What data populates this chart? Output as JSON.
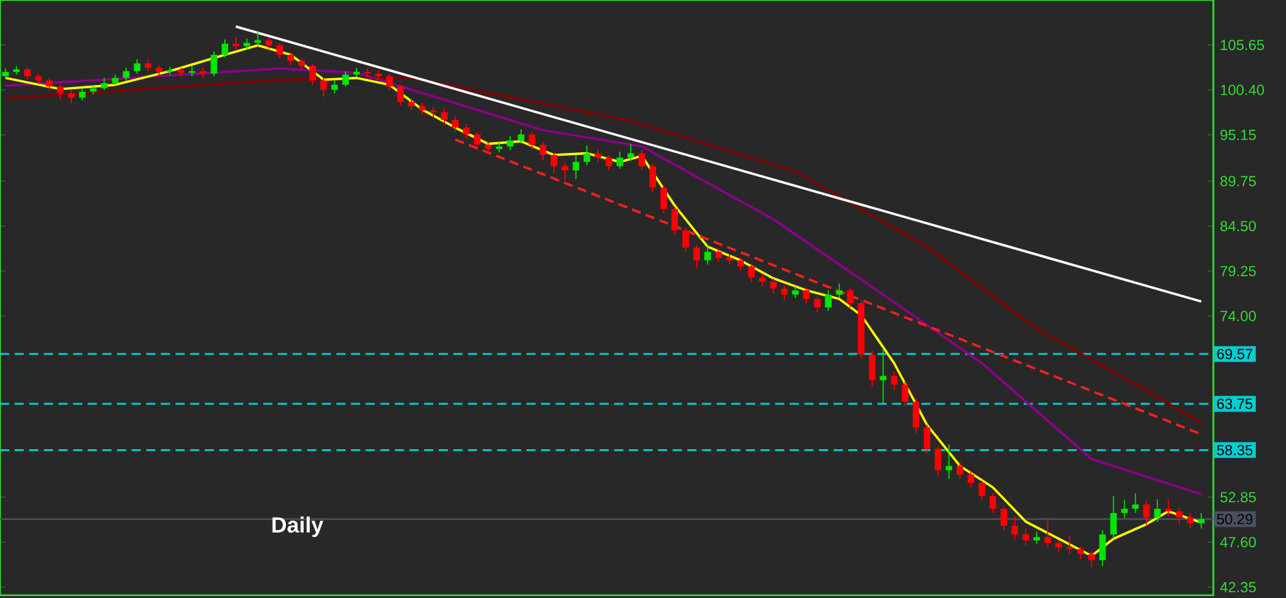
{
  "chart_data": {
    "type": "candlestick",
    "categories": [
      null,
      null,
      null,
      null,
      null,
      null,
      null,
      null,
      null,
      null,
      null,
      null,
      null,
      null,
      null,
      null,
      null,
      null,
      null,
      null,
      null,
      null,
      null,
      null,
      null,
      null,
      null,
      null,
      null,
      null,
      null,
      null,
      null,
      null,
      null,
      null,
      null,
      null,
      null,
      null,
      null,
      null,
      null,
      null,
      null,
      null,
      null,
      null,
      null,
      null,
      null,
      null,
      null,
      null,
      null,
      null,
      null,
      null,
      null,
      null,
      null,
      null,
      null,
      null,
      null,
      null,
      null,
      null,
      null,
      null,
      null,
      null,
      null,
      null,
      null,
      null,
      null,
      null,
      null,
      null,
      null,
      null,
      null,
      null,
      null,
      null,
      null,
      null,
      null,
      null,
      null,
      null,
      null,
      null,
      null,
      null,
      null,
      null,
      null,
      null,
      null,
      null,
      null,
      null,
      null,
      null,
      null,
      null,
      null,
      null
    ],
    "ohlc": [
      [
        102.0,
        102.9,
        101.7,
        102.5
      ],
      [
        102.5,
        103.2,
        102.2,
        102.8
      ],
      [
        102.8,
        103.0,
        101.6,
        102.0
      ],
      [
        102.0,
        102.3,
        101.1,
        101.5
      ],
      [
        101.5,
        101.8,
        100.3,
        100.8
      ],
      [
        100.8,
        101.0,
        99.3,
        100.0
      ],
      [
        100.0,
        100.4,
        98.8,
        99.5
      ],
      [
        99.5,
        100.6,
        99.2,
        100.2
      ],
      [
        100.2,
        101.0,
        99.9,
        100.6
      ],
      [
        100.6,
        101.8,
        100.4,
        101.2
      ],
      [
        101.2,
        102.2,
        101.0,
        101.8
      ],
      [
        101.8,
        103.0,
        101.5,
        102.6
      ],
      [
        102.6,
        104.0,
        102.3,
        103.5
      ],
      [
        103.5,
        103.9,
        102.6,
        103.0
      ],
      [
        103.0,
        103.3,
        102.0,
        102.5
      ],
      [
        102.5,
        103.1,
        102.1,
        102.7
      ],
      [
        102.7,
        103.0,
        101.9,
        102.4
      ],
      [
        102.4,
        103.2,
        102.0,
        102.6
      ],
      [
        102.6,
        103.0,
        101.8,
        102.3
      ],
      [
        102.3,
        104.9,
        102.0,
        104.5
      ],
      [
        104.5,
        106.3,
        104.2,
        105.8
      ],
      [
        105.8,
        106.6,
        105.0,
        105.5
      ],
      [
        105.5,
        106.4,
        105.1,
        105.9
      ],
      [
        105.9,
        107.3,
        105.6,
        106.2
      ],
      [
        106.2,
        106.5,
        105.2,
        105.6
      ],
      [
        105.6,
        105.9,
        104.1,
        104.5
      ],
      [
        104.5,
        104.8,
        103.3,
        103.8
      ],
      [
        103.8,
        104.1,
        102.8,
        103.2
      ],
      [
        103.2,
        103.4,
        101.0,
        101.5
      ],
      [
        101.5,
        101.8,
        99.6,
        100.4
      ],
      [
        100.4,
        101.5,
        100.0,
        101.0
      ],
      [
        101.0,
        102.6,
        100.8,
        102.2
      ],
      [
        102.2,
        103.0,
        101.9,
        102.5
      ],
      [
        102.5,
        102.9,
        101.9,
        102.3
      ],
      [
        102.3,
        102.7,
        101.6,
        102.0
      ],
      [
        102.0,
        102.3,
        100.4,
        100.8
      ],
      [
        100.8,
        101.0,
        98.6,
        99.0
      ],
      [
        99.0,
        99.4,
        98.0,
        98.5
      ],
      [
        98.5,
        98.9,
        97.5,
        98.0
      ],
      [
        98.0,
        98.4,
        97.2,
        97.8
      ],
      [
        97.8,
        98.2,
        96.4,
        96.9
      ],
      [
        96.9,
        97.3,
        95.5,
        96.0
      ],
      [
        96.0,
        96.4,
        94.7,
        95.2
      ],
      [
        95.2,
        95.5,
        93.4,
        94.0
      ],
      [
        94.0,
        94.3,
        92.9,
        93.5
      ],
      [
        93.5,
        94.4,
        93.1,
        93.8
      ],
      [
        93.8,
        95.0,
        93.4,
        94.5
      ],
      [
        94.5,
        95.8,
        94.2,
        95.2
      ],
      [
        95.2,
        95.5,
        93.5,
        94.0
      ],
      [
        94.0,
        94.3,
        92.2,
        92.8
      ],
      [
        92.8,
        93.1,
        90.6,
        91.5
      ],
      [
        91.5,
        91.9,
        89.8,
        91.0
      ],
      [
        91.0,
        92.8,
        90.0,
        92.0
      ],
      [
        92.0,
        93.9,
        91.6,
        93.0
      ],
      [
        93.0,
        93.4,
        92.0,
        92.5
      ],
      [
        92.5,
        92.8,
        91.0,
        91.5
      ],
      [
        91.5,
        93.2,
        91.2,
        92.5
      ],
      [
        92.5,
        94.1,
        92.1,
        93.0
      ],
      [
        93.0,
        93.4,
        91.0,
        91.5
      ],
      [
        91.5,
        91.8,
        88.5,
        89.0
      ],
      [
        89.0,
        89.3,
        86.0,
        86.5
      ],
      [
        86.5,
        86.8,
        83.5,
        84.0
      ],
      [
        84.0,
        84.3,
        81.5,
        82.0
      ],
      [
        82.0,
        82.3,
        79.6,
        80.5
      ],
      [
        80.5,
        82.2,
        80.0,
        81.5
      ],
      [
        81.5,
        81.9,
        80.3,
        80.8
      ],
      [
        80.8,
        81.2,
        80.0,
        80.5
      ],
      [
        80.5,
        80.9,
        79.3,
        79.8
      ],
      [
        79.8,
        80.1,
        78.0,
        78.5
      ],
      [
        78.5,
        78.9,
        77.5,
        78.0
      ],
      [
        78.0,
        78.4,
        76.6,
        77.2
      ],
      [
        77.2,
        77.6,
        75.9,
        76.5
      ],
      [
        76.5,
        77.5,
        76.1,
        77.0
      ],
      [
        77.0,
        77.3,
        75.5,
        76.0
      ],
      [
        76.0,
        76.3,
        74.4,
        75.0
      ],
      [
        75.0,
        77.0,
        74.6,
        76.5
      ],
      [
        76.5,
        77.8,
        76.1,
        77.0
      ],
      [
        77.0,
        77.3,
        75.0,
        75.5
      ],
      [
        75.5,
        75.8,
        69.0,
        69.5
      ],
      [
        69.5,
        70.0,
        65.8,
        66.5
      ],
      [
        66.5,
        70.3,
        63.8,
        67.0
      ],
      [
        67.0,
        67.5,
        65.4,
        66.0
      ],
      [
        66.0,
        66.3,
        63.5,
        64.0
      ],
      [
        64.0,
        64.4,
        60.3,
        61.0
      ],
      [
        61.0,
        61.3,
        57.9,
        58.5
      ],
      [
        58.5,
        58.8,
        55.3,
        56.0
      ],
      [
        56.0,
        59.0,
        55.0,
        56.5
      ],
      [
        56.5,
        57.0,
        55.0,
        55.5
      ],
      [
        55.5,
        55.8,
        54.0,
        54.5
      ],
      [
        54.5,
        54.8,
        52.4,
        53.0
      ],
      [
        53.0,
        53.3,
        51.0,
        51.5
      ],
      [
        51.5,
        51.8,
        48.9,
        49.5
      ],
      [
        49.5,
        50.6,
        47.9,
        48.5
      ],
      [
        48.5,
        49.2,
        47.2,
        47.8
      ],
      [
        47.8,
        48.8,
        47.4,
        48.2
      ],
      [
        48.2,
        50.5,
        47.0,
        47.5
      ],
      [
        47.5,
        47.8,
        46.4,
        47.0
      ],
      [
        47.0,
        48.4,
        46.2,
        46.8
      ],
      [
        46.8,
        47.1,
        45.6,
        46.2
      ],
      [
        46.2,
        46.5,
        44.6,
        45.5
      ],
      [
        45.5,
        49.0,
        44.8,
        48.5
      ],
      [
        48.5,
        53.0,
        48.0,
        51.0
      ],
      [
        51.0,
        52.5,
        50.4,
        51.5
      ],
      [
        51.5,
        53.3,
        51.0,
        52.0
      ],
      [
        52.0,
        52.4,
        49.6,
        50.5
      ],
      [
        50.5,
        52.6,
        50.0,
        51.5
      ],
      [
        51.5,
        52.5,
        50.6,
        51.2
      ],
      [
        51.2,
        51.6,
        49.6,
        50.5
      ],
      [
        50.5,
        51.0,
        49.2,
        49.8
      ],
      [
        49.8,
        51.0,
        49.2,
        50.3
      ]
    ],
    "colors": [
      "#00e600",
      "#00e600",
      "#ff0000",
      "#ff0000",
      "#ff0000",
      "#ff0000",
      "#ff0000",
      "#00e600",
      "#00e600",
      "#00e600",
      "#00e600",
      "#00e600",
      "#00e600",
      "#ff0000",
      "#ff0000",
      "#00e600",
      "#ff0000",
      "#00e600",
      "#ff0000",
      "#00e600",
      "#00e600",
      "#ff0000",
      "#00e600",
      "#00e600",
      "#ff0000",
      "#ff0000",
      "#ff0000",
      "#ff0000",
      "#ff0000",
      "#ff0000",
      "#00e600",
      "#00e600",
      "#00e600",
      "#ff0000",
      "#ff0000",
      "#ff0000",
      "#ff0000",
      "#ff0000",
      "#ff0000",
      "#ff0000",
      "#ff0000",
      "#ff0000",
      "#ff0000",
      "#ff0000",
      "#ff0000",
      "#00e600",
      "#00e600",
      "#00e600",
      "#ff0000",
      "#ff0000",
      "#ff0000",
      "#ff0000",
      "#00e600",
      "#00e600",
      "#ff0000",
      "#ff0000",
      "#00e600",
      "#00e600",
      "#ff0000",
      "#ff0000",
      "#ff0000",
      "#ff0000",
      "#ff0000",
      "#ff0000",
      "#00e600",
      "#ff0000",
      "#ff0000",
      "#ff0000",
      "#ff0000",
      "#ff0000",
      "#ff0000",
      "#ff0000",
      "#00e600",
      "#ff0000",
      "#ff0000",
      "#00e600",
      "#00e600",
      "#ff0000",
      "#ff0000",
      "#ff0000",
      "#00e600",
      "#ff0000",
      "#ff0000",
      "#ff0000",
      "#ff0000",
      "#ff0000",
      "#00e600",
      "#ff0000",
      "#ff0000",
      "#ff0000",
      "#ff0000",
      "#ff0000",
      "#ff0000",
      "#ff0000",
      "#00e600",
      "#ff0000",
      "#ff0000",
      "#ff0000",
      "#ff0000",
      "#ff0000",
      "#00e600",
      "#00e600",
      "#00e600",
      "#00e600",
      "#ff0000",
      "#00e600",
      "#ff0000",
      "#ff0000",
      "#ff0000",
      "#00e600"
    ],
    "series": [
      {
        "type": "line",
        "color": "#800000",
        "values": [
          99.4,
          null,
          null,
          null,
          null,
          null,
          null,
          null,
          null,
          null,
          null,
          null,
          null,
          null,
          null,
          null,
          null,
          null,
          null,
          null,
          null,
          null,
          null,
          null,
          null,
          101.6,
          null,
          null,
          null,
          null,
          null,
          null,
          null,
          null,
          null,
          null,
          null,
          101.8,
          null,
          null,
          null,
          null,
          null,
          null,
          null,
          null,
          null,
          null,
          null,
          null,
          null,
          null,
          null,
          null,
          null,
          null,
          null,
          96.8,
          null,
          null,
          null,
          null,
          null,
          null,
          null,
          null,
          null,
          null,
          null,
          null,
          null,
          null,
          90.9,
          null,
          null,
          null,
          null,
          null,
          null,
          null,
          null,
          null,
          null,
          null,
          82.1,
          null,
          null,
          null,
          null,
          null,
          null,
          null,
          null,
          null,
          72.5,
          null,
          null,
          null,
          null,
          null,
          null,
          null,
          null,
          null,
          65.3,
          null,
          null,
          null,
          null,
          61.5
        ]
      },
      {
        "type": "line",
        "color": "#8b008b",
        "values": [
          100.9,
          null,
          null,
          null,
          null,
          null,
          null,
          null,
          null,
          null,
          null,
          null,
          null,
          null,
          null,
          null,
          null,
          null,
          null,
          null,
          null,
          null,
          null,
          null,
          null,
          102.9,
          null,
          null,
          null,
          null,
          null,
          null,
          102.4,
          null,
          null,
          null,
          null,
          null,
          null,
          null,
          null,
          null,
          null,
          null,
          null,
          null,
          null,
          null,
          null,
          95.7,
          null,
          null,
          null,
          null,
          null,
          null,
          null,
          null,
          93.8,
          null,
          null,
          null,
          null,
          null,
          null,
          null,
          null,
          null,
          null,
          null,
          85.3,
          null,
          null,
          null,
          null,
          null,
          null,
          null,
          null,
          null,
          76.5,
          null,
          null,
          null,
          null,
          null,
          null,
          null,
          null,
          68.5,
          null,
          null,
          null,
          null,
          null,
          null,
          null,
          null,
          null,
          57.3,
          null,
          null,
          null,
          null,
          null,
          null,
          null,
          null,
          null,
          53.2
        ]
      },
      {
        "type": "line",
        "color": "#ffff00",
        "values": [
          101.8,
          null,
          null,
          null,
          null,
          100.5,
          null,
          null,
          null,
          null,
          101.0,
          null,
          null,
          null,
          null,
          102.6,
          null,
          null,
          null,
          null,
          104.5,
          null,
          null,
          105.6,
          null,
          null,
          104.5,
          null,
          null,
          101.6,
          null,
          null,
          101.8,
          null,
          null,
          101.0,
          null,
          null,
          98.1,
          null,
          null,
          96.0,
          null,
          null,
          94.1,
          null,
          null,
          94.4,
          null,
          null,
          92.8,
          null,
          null,
          93.0,
          null,
          null,
          92.0,
          null,
          92.7,
          null,
          null,
          86.9,
          null,
          null,
          82.1,
          null,
          null,
          80.5,
          null,
          null,
          78.4,
          null,
          null,
          77.0,
          null,
          null,
          76.0,
          null,
          74.1,
          null,
          null,
          68.5,
          null,
          null,
          61.3,
          null,
          null,
          56.5,
          null,
          null,
          54.0,
          null,
          null,
          50.0,
          null,
          null,
          48.0,
          null,
          null,
          46.0,
          null,
          48.0,
          null,
          null,
          49.7,
          null,
          51.2,
          null,
          null,
          49.9
        ]
      },
      {
        "type": "line",
        "color": "#ff2020",
        "line_style": "dashed",
        "values": [
          null,
          null,
          null,
          null,
          null,
          null,
          null,
          null,
          null,
          null,
          null,
          null,
          null,
          null,
          null,
          null,
          null,
          null,
          null,
          null,
          null,
          null,
          null,
          null,
          null,
          null,
          null,
          null,
          null,
          null,
          null,
          null,
          null,
          null,
          null,
          null,
          null,
          null,
          null,
          null,
          null,
          94.6,
          null,
          null,
          null,
          null,
          null,
          null,
          null,
          null,
          null,
          null,
          null,
          null,
          null,
          null,
          null,
          null,
          null,
          null,
          null,
          null,
          null,
          null,
          null,
          null,
          null,
          null,
          null,
          null,
          null,
          null,
          null,
          null,
          null,
          null,
          null,
          null,
          null,
          null,
          null,
          null,
          null,
          null,
          null,
          null,
          null,
          null,
          null,
          null,
          null,
          null,
          null,
          null,
          null,
          null,
          null,
          null,
          null,
          null,
          null,
          null,
          null,
          null,
          null,
          null,
          null,
          null,
          null,
          60.2
        ]
      },
      {
        "type": "line",
        "color": "#ffffff",
        "values": [
          null,
          null,
          null,
          null,
          null,
          null,
          null,
          null,
          null,
          null,
          null,
          null,
          null,
          null,
          null,
          null,
          null,
          null,
          null,
          null,
          null,
          107.8,
          null,
          null,
          null,
          null,
          null,
          null,
          null,
          null,
          null,
          null,
          null,
          null,
          null,
          null,
          null,
          null,
          null,
          null,
          null,
          null,
          null,
          null,
          null,
          null,
          null,
          null,
          null,
          null,
          null,
          null,
          null,
          null,
          null,
          null,
          null,
          null,
          null,
          null,
          null,
          null,
          null,
          null,
          null,
          null,
          null,
          null,
          null,
          null,
          null,
          null,
          null,
          null,
          null,
          null,
          null,
          null,
          null,
          null,
          null,
          null,
          null,
          null,
          null,
          null,
          null,
          null,
          null,
          null,
          null,
          null,
          null,
          null,
          null,
          null,
          null,
          null,
          null,
          null,
          null,
          null,
          null,
          null,
          null,
          null,
          null,
          null,
          null,
          75.7
        ]
      }
    ],
    "ylim": [
      41.4,
      110.9
    ],
    "yticks": [
      105.65,
      {
        "value": 100.4,
        "label": "100.40"
      },
      95.15,
      89.75,
      {
        "value": 84.5,
        "label": "84.50"
      },
      79.25,
      {
        "value": 74.0,
        "label": "74.00"
      },
      52.85,
      {
        "value": 47.6,
        "label": "47.60"
      },
      42.35
    ],
    "tick_labels": "y",
    "ref_lines": [
      {
        "axis": "y",
        "value": 69.57,
        "label": "69.57",
        "color": "#00ced1",
        "line_style": "dashed"
      },
      {
        "axis": "y",
        "value": 63.75,
        "label": "63.75",
        "color": "#00ced1",
        "line_style": "dashed"
      },
      {
        "axis": "y",
        "value": 58.35,
        "label": "58.35",
        "color": "#00ced1",
        "line_style": "dashed"
      },
      {
        "axis": "y",
        "value": 50.29,
        "label": "50.29",
        "color": "#4a5060",
        "line_style": "solid"
      }
    ],
    "annotations": [
      "Daily"
    ]
  }
}
